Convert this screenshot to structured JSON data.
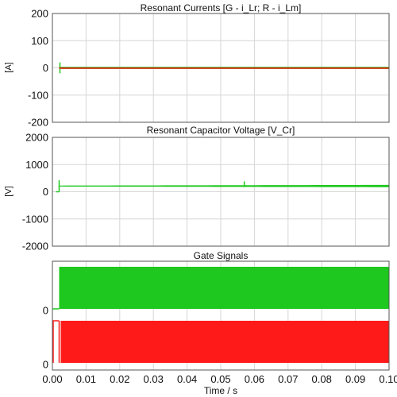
{
  "colors": {
    "green": "#1ec81e",
    "red": "#ff1a1a",
    "grid": "#d6d6d6",
    "axis": "#555555"
  },
  "chart_data": [
    {
      "type": "line",
      "title": "Resonant Currents [G - i_Lr; R - i_Lm]",
      "ylabel": "[A]",
      "ylim": [
        -200,
        200
      ],
      "yticks": [
        "200",
        "100",
        "0",
        "-100",
        "-200"
      ],
      "ytick_values": [
        200,
        100,
        0,
        -100,
        -200
      ],
      "xlim": [
        0,
        0.1
      ],
      "grid": true,
      "series": [
        {
          "color": "green",
          "start": 0.002,
          "mean": 0,
          "band": 8,
          "startup_spike": 20
        },
        {
          "color": "red",
          "start": 0.002,
          "mean": 0,
          "band": 2
        }
      ]
    },
    {
      "type": "line",
      "title": "Resonant Capacitor Voltage [V_Cr]",
      "ylabel": "[V]",
      "ylim": [
        -2000,
        2000
      ],
      "yticks": [
        "2000",
        "1000",
        "0",
        "-1000",
        "-2000"
      ],
      "ytick_values": [
        2000,
        1000,
        0,
        -1000,
        -2000
      ],
      "xlim": [
        0,
        0.1
      ],
      "grid": true,
      "series": [
        {
          "color": "green",
          "start": 0.002,
          "mean": 210,
          "band": 60,
          "startup_spike": 420,
          "event_time": 0.057,
          "event_spike": 380
        }
      ]
    },
    {
      "type": "line",
      "title": "Gate Signals",
      "ylabel": "",
      "yticks": [
        "0",
        "0"
      ],
      "xlim": [
        0,
        0.1
      ],
      "grid": true,
      "series": [
        {
          "color": "green",
          "start": 0.002,
          "level": 1
        },
        {
          "color": "red",
          "start": 0.0,
          "level": 1,
          "pulsing_from": 0.002
        }
      ]
    }
  ],
  "xaxis": {
    "xlabel": "Time / s",
    "xticks": [
      "0.00",
      "0.01",
      "0.02",
      "0.03",
      "0.04",
      "0.05",
      "0.06",
      "0.07",
      "0.08",
      "0.09",
      "0.10"
    ],
    "xtick_values": [
      0,
      0.01,
      0.02,
      0.03,
      0.04,
      0.05,
      0.06,
      0.07,
      0.08,
      0.09,
      0.1
    ]
  }
}
